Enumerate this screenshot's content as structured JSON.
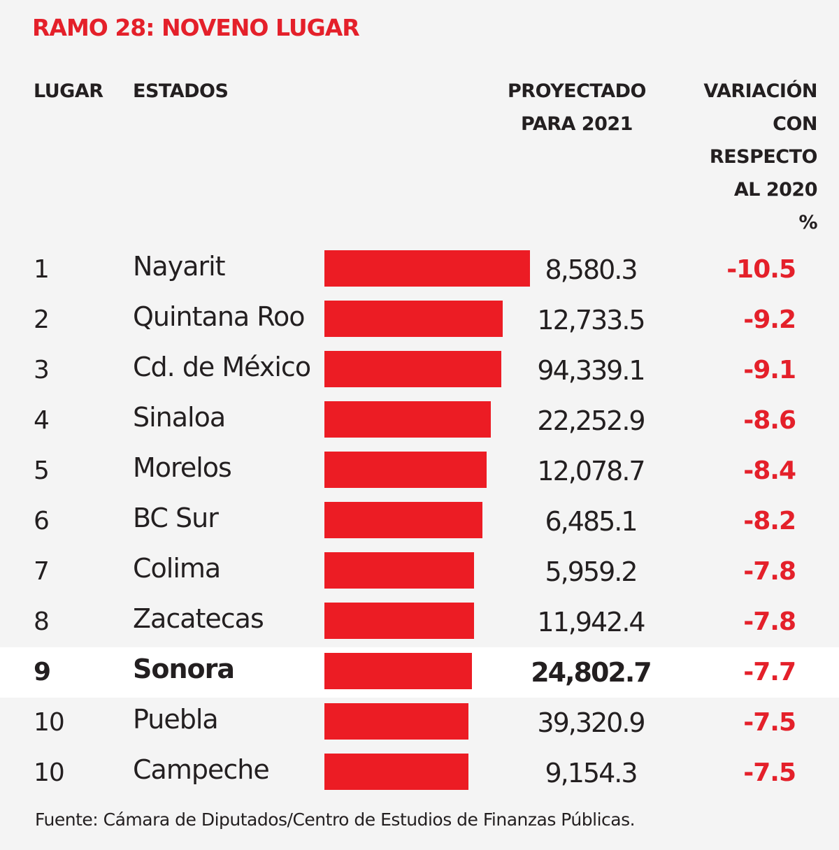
{
  "title": "RAMO 28: NOVENO LUGAR",
  "headers": {
    "rank": "LUGAR",
    "state": "ESTADOS",
    "projected_line1": "PROYECTADO",
    "projected_line2": "PARA 2021",
    "variation_line1": "VARIACIÓN",
    "variation_line2": "CON",
    "variation_line3": "RESPECTO",
    "variation_line4": "AL 2020",
    "variation_line5": "%"
  },
  "chart_data": {
    "type": "bar",
    "orientation": "horizontal",
    "bar_measure": "magnitude of variation with respect to 2020 (%)",
    "highlight_row": 8,
    "colors": {
      "bar": "#ec1c24",
      "variation_text": "#e4202a",
      "title": "#e4202a",
      "highlight_background": "#ffffff"
    },
    "rows": [
      {
        "rank": "1",
        "state": "Nayarit",
        "projected": "8,580.3",
        "variation": "-10.5",
        "variation_value": -10.5
      },
      {
        "rank": "2",
        "state": "Quintana Roo",
        "projected": "12,733.5",
        "variation": "-9.2",
        "variation_value": -9.2
      },
      {
        "rank": "3",
        "state": "Cd. de México",
        "projected": "94,339.1",
        "variation": "-9.1",
        "variation_value": -9.1
      },
      {
        "rank": "4",
        "state": "Sinaloa",
        "projected": "22,252.9",
        "variation": "-8.6",
        "variation_value": -8.6
      },
      {
        "rank": "5",
        "state": "Morelos",
        "projected": "12,078.7",
        "variation": "-8.4",
        "variation_value": -8.4
      },
      {
        "rank": "6",
        "state": "BC Sur",
        "projected": "6,485.1",
        "variation": "-8.2",
        "variation_value": -8.2
      },
      {
        "rank": "7",
        "state": "Colima",
        "projected": "5,959.2",
        "variation": "-7.8",
        "variation_value": -7.8
      },
      {
        "rank": "8",
        "state": "Zacatecas",
        "projected": "11,942.4",
        "variation": "-7.8",
        "variation_value": -7.8
      },
      {
        "rank": "9",
        "state": "Sonora",
        "projected": "24,802.7",
        "variation": "-7.7",
        "variation_value": -7.7
      },
      {
        "rank": "10",
        "state": "Puebla",
        "projected": "39,320.9",
        "variation": "-7.5",
        "variation_value": -7.5
      },
      {
        "rank": "10",
        "state": "Campeche",
        "projected": "9,154.3",
        "variation": "-7.5",
        "variation_value": -7.5
      }
    ]
  },
  "source": "Fuente: Cámara de Diputados/Centro de Estudios de Finanzas Públicas."
}
